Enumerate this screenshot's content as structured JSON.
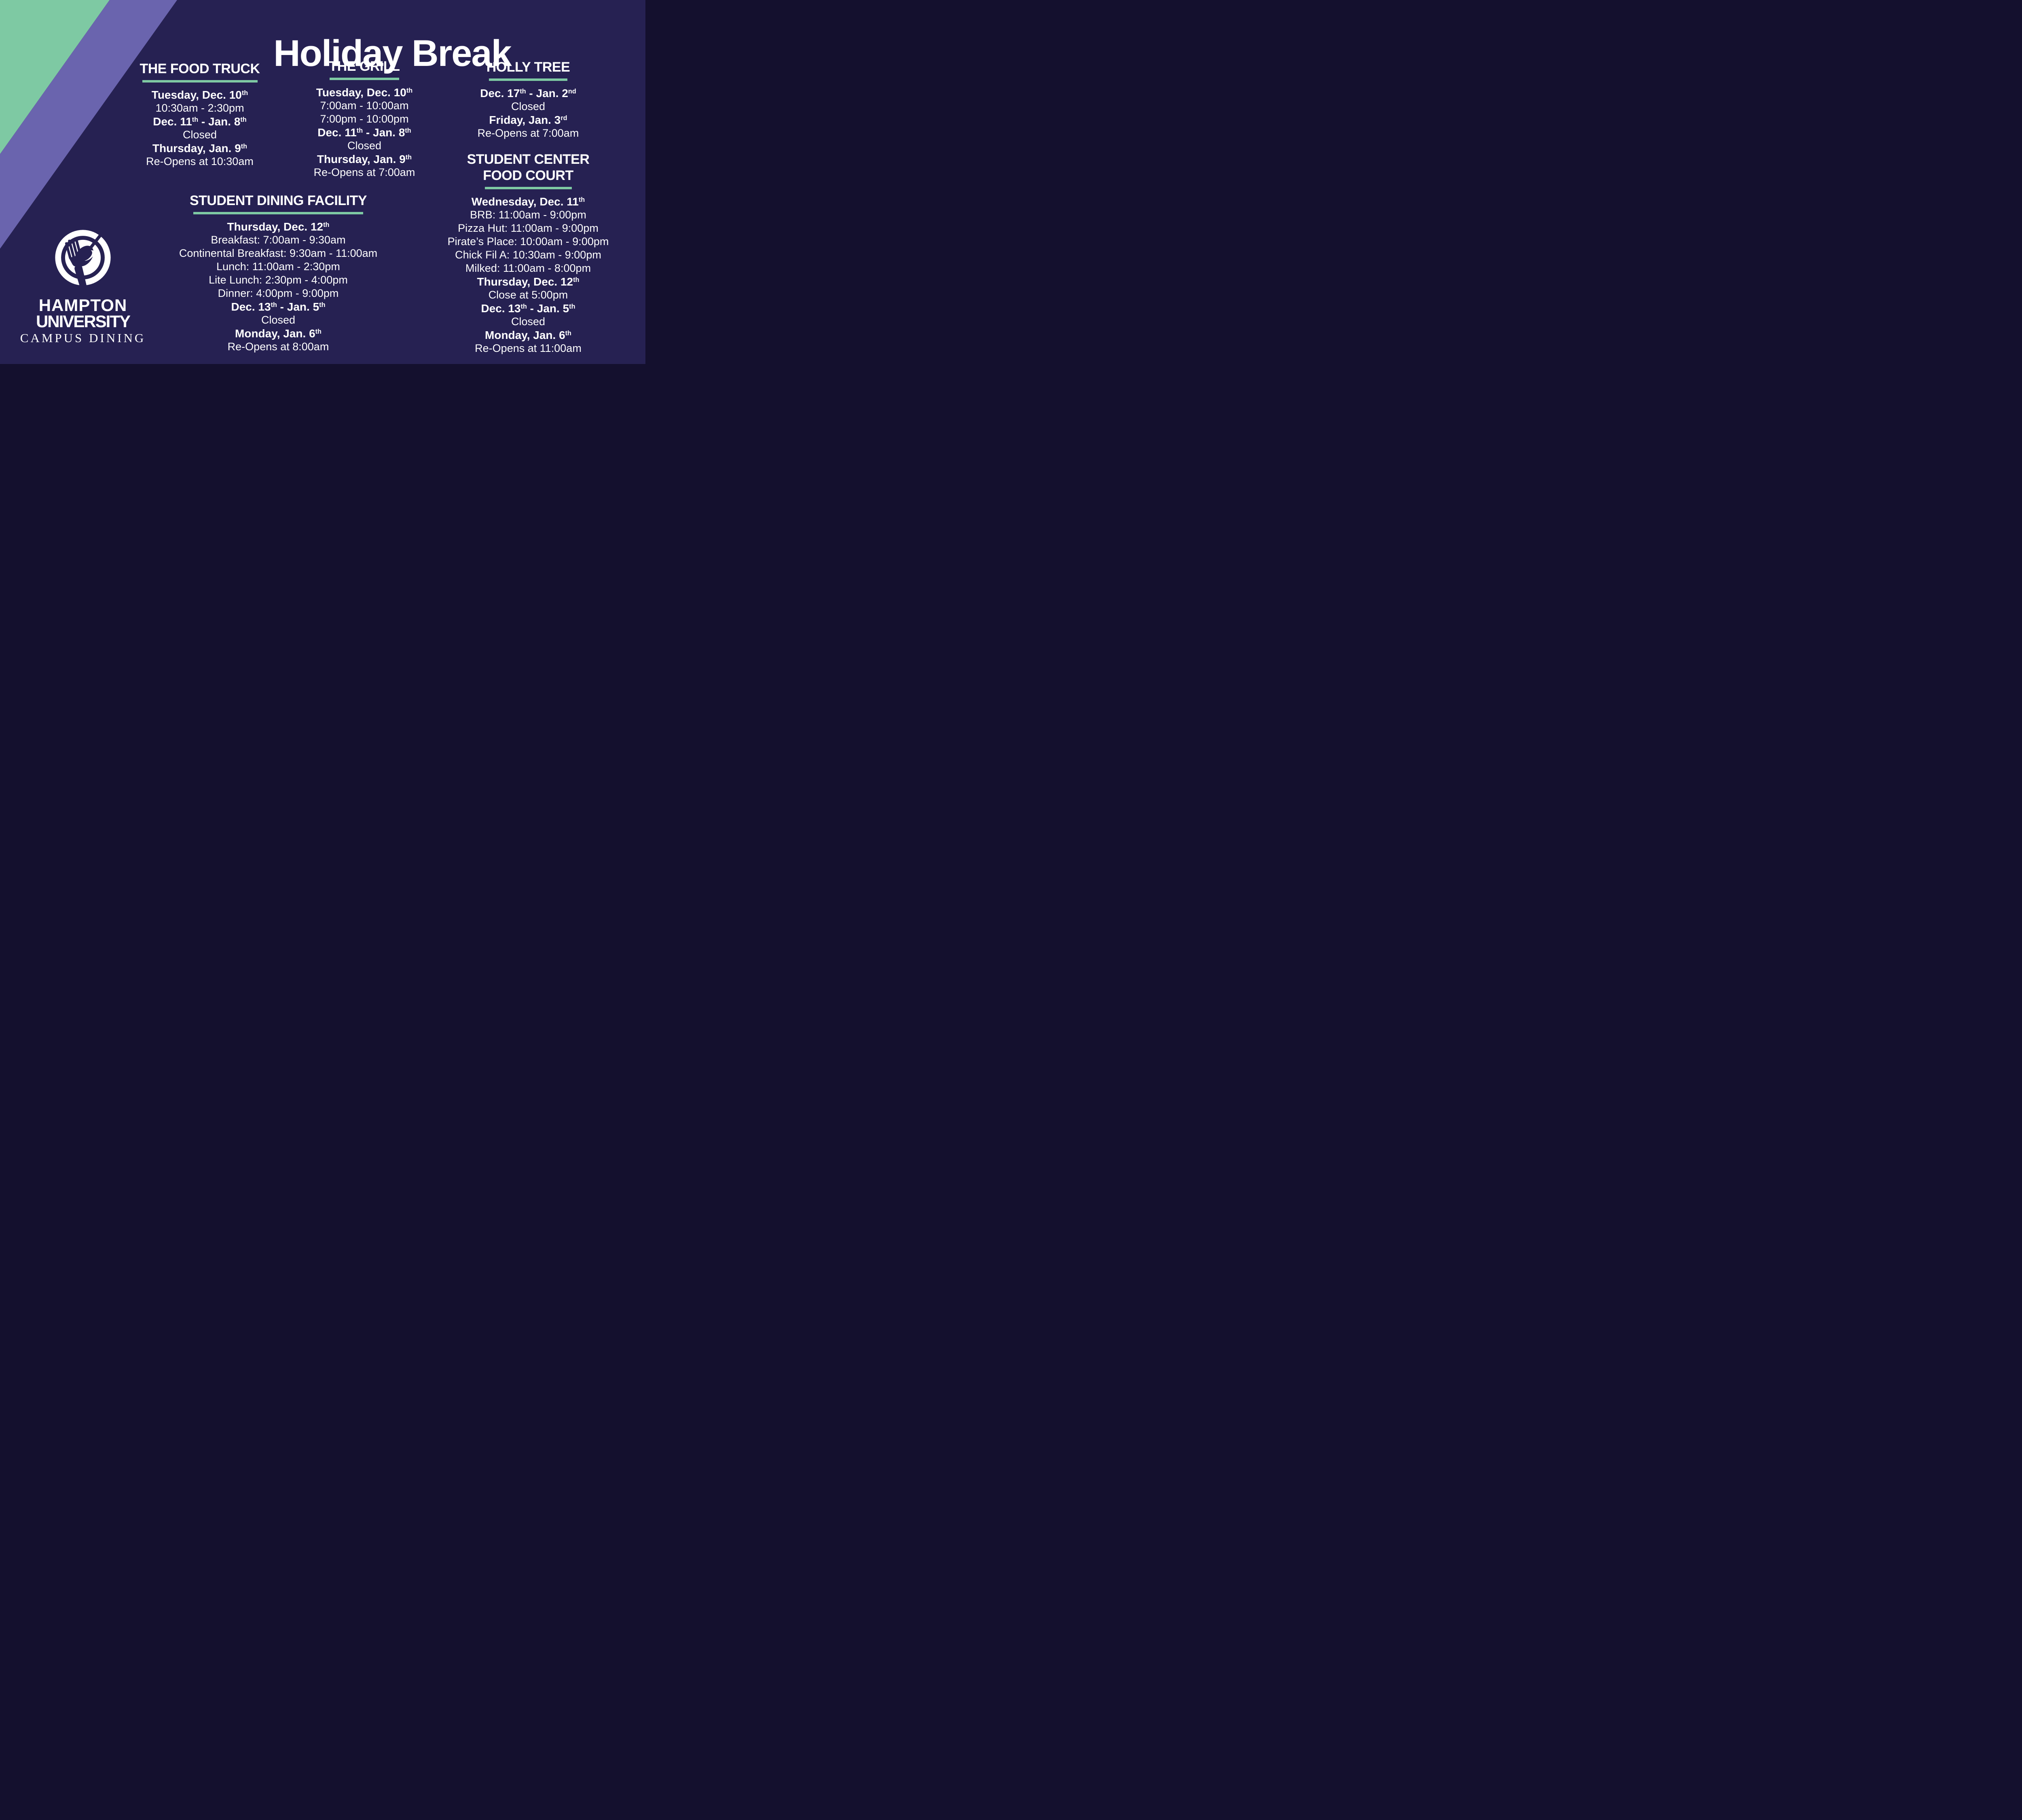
{
  "title": "Holiday Break",
  "colors": {
    "background_navy": "#262152",
    "stripe_purple": "#6a64ae",
    "accent_green": "#7ec9a3",
    "text_white": "#ffffff"
  },
  "sections": [
    {
      "id": "food-truck",
      "heading": [
        "THE FOOD TRUCK"
      ],
      "lines": [
        {
          "bold": true,
          "parts": [
            {
              "t": "Tuesday, Dec. 10"
            },
            {
              "sup": "th"
            }
          ]
        },
        {
          "bold": false,
          "parts": [
            {
              "t": "10:30am - 2:30pm"
            }
          ]
        },
        {
          "bold": true,
          "parts": [
            {
              "t": "Dec. 11"
            },
            {
              "sup": "th"
            },
            {
              "t": " - Jan. 8"
            },
            {
              "sup": "th"
            }
          ]
        },
        {
          "bold": false,
          "parts": [
            {
              "t": "Closed"
            }
          ]
        },
        {
          "bold": true,
          "parts": [
            {
              "t": "Thursday, Jan. 9"
            },
            {
              "sup": "th"
            }
          ]
        },
        {
          "bold": false,
          "parts": [
            {
              "t": "Re-Opens at 10:30am"
            }
          ]
        }
      ]
    },
    {
      "id": "grill",
      "heading": [
        "THE GRILL"
      ],
      "lines": [
        {
          "bold": true,
          "parts": [
            {
              "t": "Tuesday, Dec. 10"
            },
            {
              "sup": "th"
            }
          ]
        },
        {
          "bold": false,
          "parts": [
            {
              "t": "7:00am - 10:00am"
            }
          ]
        },
        {
          "bold": false,
          "parts": [
            {
              "t": "7:00pm - 10:00pm"
            }
          ]
        },
        {
          "bold": true,
          "parts": [
            {
              "t": "Dec. 11"
            },
            {
              "sup": "th"
            },
            {
              "t": " - Jan. 8"
            },
            {
              "sup": "th"
            }
          ]
        },
        {
          "bold": false,
          "parts": [
            {
              "t": "Closed"
            }
          ]
        },
        {
          "bold": true,
          "parts": [
            {
              "t": "Thursday, Jan. 9"
            },
            {
              "sup": "th"
            }
          ]
        },
        {
          "bold": false,
          "parts": [
            {
              "t": "Re-Opens at 7:00am"
            }
          ]
        }
      ]
    },
    {
      "id": "holly-tree",
      "heading": [
        "HOLLY TREE"
      ],
      "lines": [
        {
          "bold": true,
          "parts": [
            {
              "t": "Dec. 17"
            },
            {
              "sup": "th"
            },
            {
              "t": " - Jan. 2"
            },
            {
              "sup": "nd"
            }
          ]
        },
        {
          "bold": false,
          "parts": [
            {
              "t": "Closed"
            }
          ]
        },
        {
          "bold": true,
          "parts": [
            {
              "t": "Friday, Jan. 3"
            },
            {
              "sup": "rd"
            }
          ]
        },
        {
          "bold": false,
          "parts": [
            {
              "t": "Re-Opens at 7:00am"
            }
          ]
        }
      ]
    },
    {
      "id": "student-dining-facility",
      "heading": [
        "STUDENT DINING FACILITY"
      ],
      "lines": [
        {
          "bold": true,
          "parts": [
            {
              "t": "Thursday, Dec. 12"
            },
            {
              "sup": "th"
            }
          ]
        },
        {
          "bold": false,
          "parts": [
            {
              "t": "Breakfast: 7:00am - 9:30am"
            }
          ]
        },
        {
          "bold": false,
          "parts": [
            {
              "t": "Continental Breakfast: 9:30am - 11:00am"
            }
          ]
        },
        {
          "bold": false,
          "parts": [
            {
              "t": "Lunch: 11:00am - 2:30pm"
            }
          ]
        },
        {
          "bold": false,
          "parts": [
            {
              "t": "Lite Lunch: 2:30pm - 4:00pm"
            }
          ]
        },
        {
          "bold": false,
          "parts": [
            {
              "t": "Dinner: 4:00pm - 9:00pm"
            }
          ]
        },
        {
          "bold": true,
          "parts": [
            {
              "t": "Dec. 13"
            },
            {
              "sup": "th"
            },
            {
              "t": " - Jan. 5"
            },
            {
              "sup": "th"
            }
          ]
        },
        {
          "bold": false,
          "parts": [
            {
              "t": "Closed"
            }
          ]
        },
        {
          "bold": true,
          "parts": [
            {
              "t": "Monday, Jan. 6"
            },
            {
              "sup": "th"
            }
          ]
        },
        {
          "bold": false,
          "parts": [
            {
              "t": "Re-Opens at 8:00am"
            }
          ]
        }
      ]
    },
    {
      "id": "student-center-food-court",
      "heading": [
        "STUDENT CENTER",
        "FOOD COURT"
      ],
      "lines": [
        {
          "bold": true,
          "parts": [
            {
              "t": "Wednesday, Dec. 11"
            },
            {
              "sup": "th"
            }
          ]
        },
        {
          "bold": false,
          "parts": [
            {
              "t": "BRB: 11:00am - 9:00pm"
            }
          ]
        },
        {
          "bold": false,
          "parts": [
            {
              "t": "Pizza Hut: 11:00am - 9:00pm"
            }
          ]
        },
        {
          "bold": false,
          "parts": [
            {
              "t": "Pirate’s Place: 10:00am - 9:00pm"
            }
          ]
        },
        {
          "bold": false,
          "parts": [
            {
              "t": "Chick Fil A: 10:30am - 9:00pm"
            }
          ]
        },
        {
          "bold": false,
          "parts": [
            {
              "t": "Milked: 11:00am - 8:00pm"
            }
          ]
        },
        {
          "bold": true,
          "parts": [
            {
              "t": "Thursday, Dec. 12"
            },
            {
              "sup": "th"
            }
          ]
        },
        {
          "bold": false,
          "parts": [
            {
              "t": "Close at 5:00pm"
            }
          ]
        },
        {
          "bold": true,
          "parts": [
            {
              "t": "Dec. 13"
            },
            {
              "sup": "th"
            },
            {
              "t": " - Jan. 5"
            },
            {
              "sup": "th"
            }
          ]
        },
        {
          "bold": false,
          "parts": [
            {
              "t": "Closed"
            }
          ]
        },
        {
          "bold": true,
          "parts": [
            {
              "t": "Monday, Jan. 6"
            },
            {
              "sup": "th"
            }
          ]
        },
        {
          "bold": false,
          "parts": [
            {
              "t": "Re-Opens at 11:00am"
            }
          ]
        }
      ]
    }
  ],
  "logo": {
    "line1": "HAMPTON",
    "line2": "UNIVERSITY",
    "line3": "CAMPUS DINING"
  }
}
